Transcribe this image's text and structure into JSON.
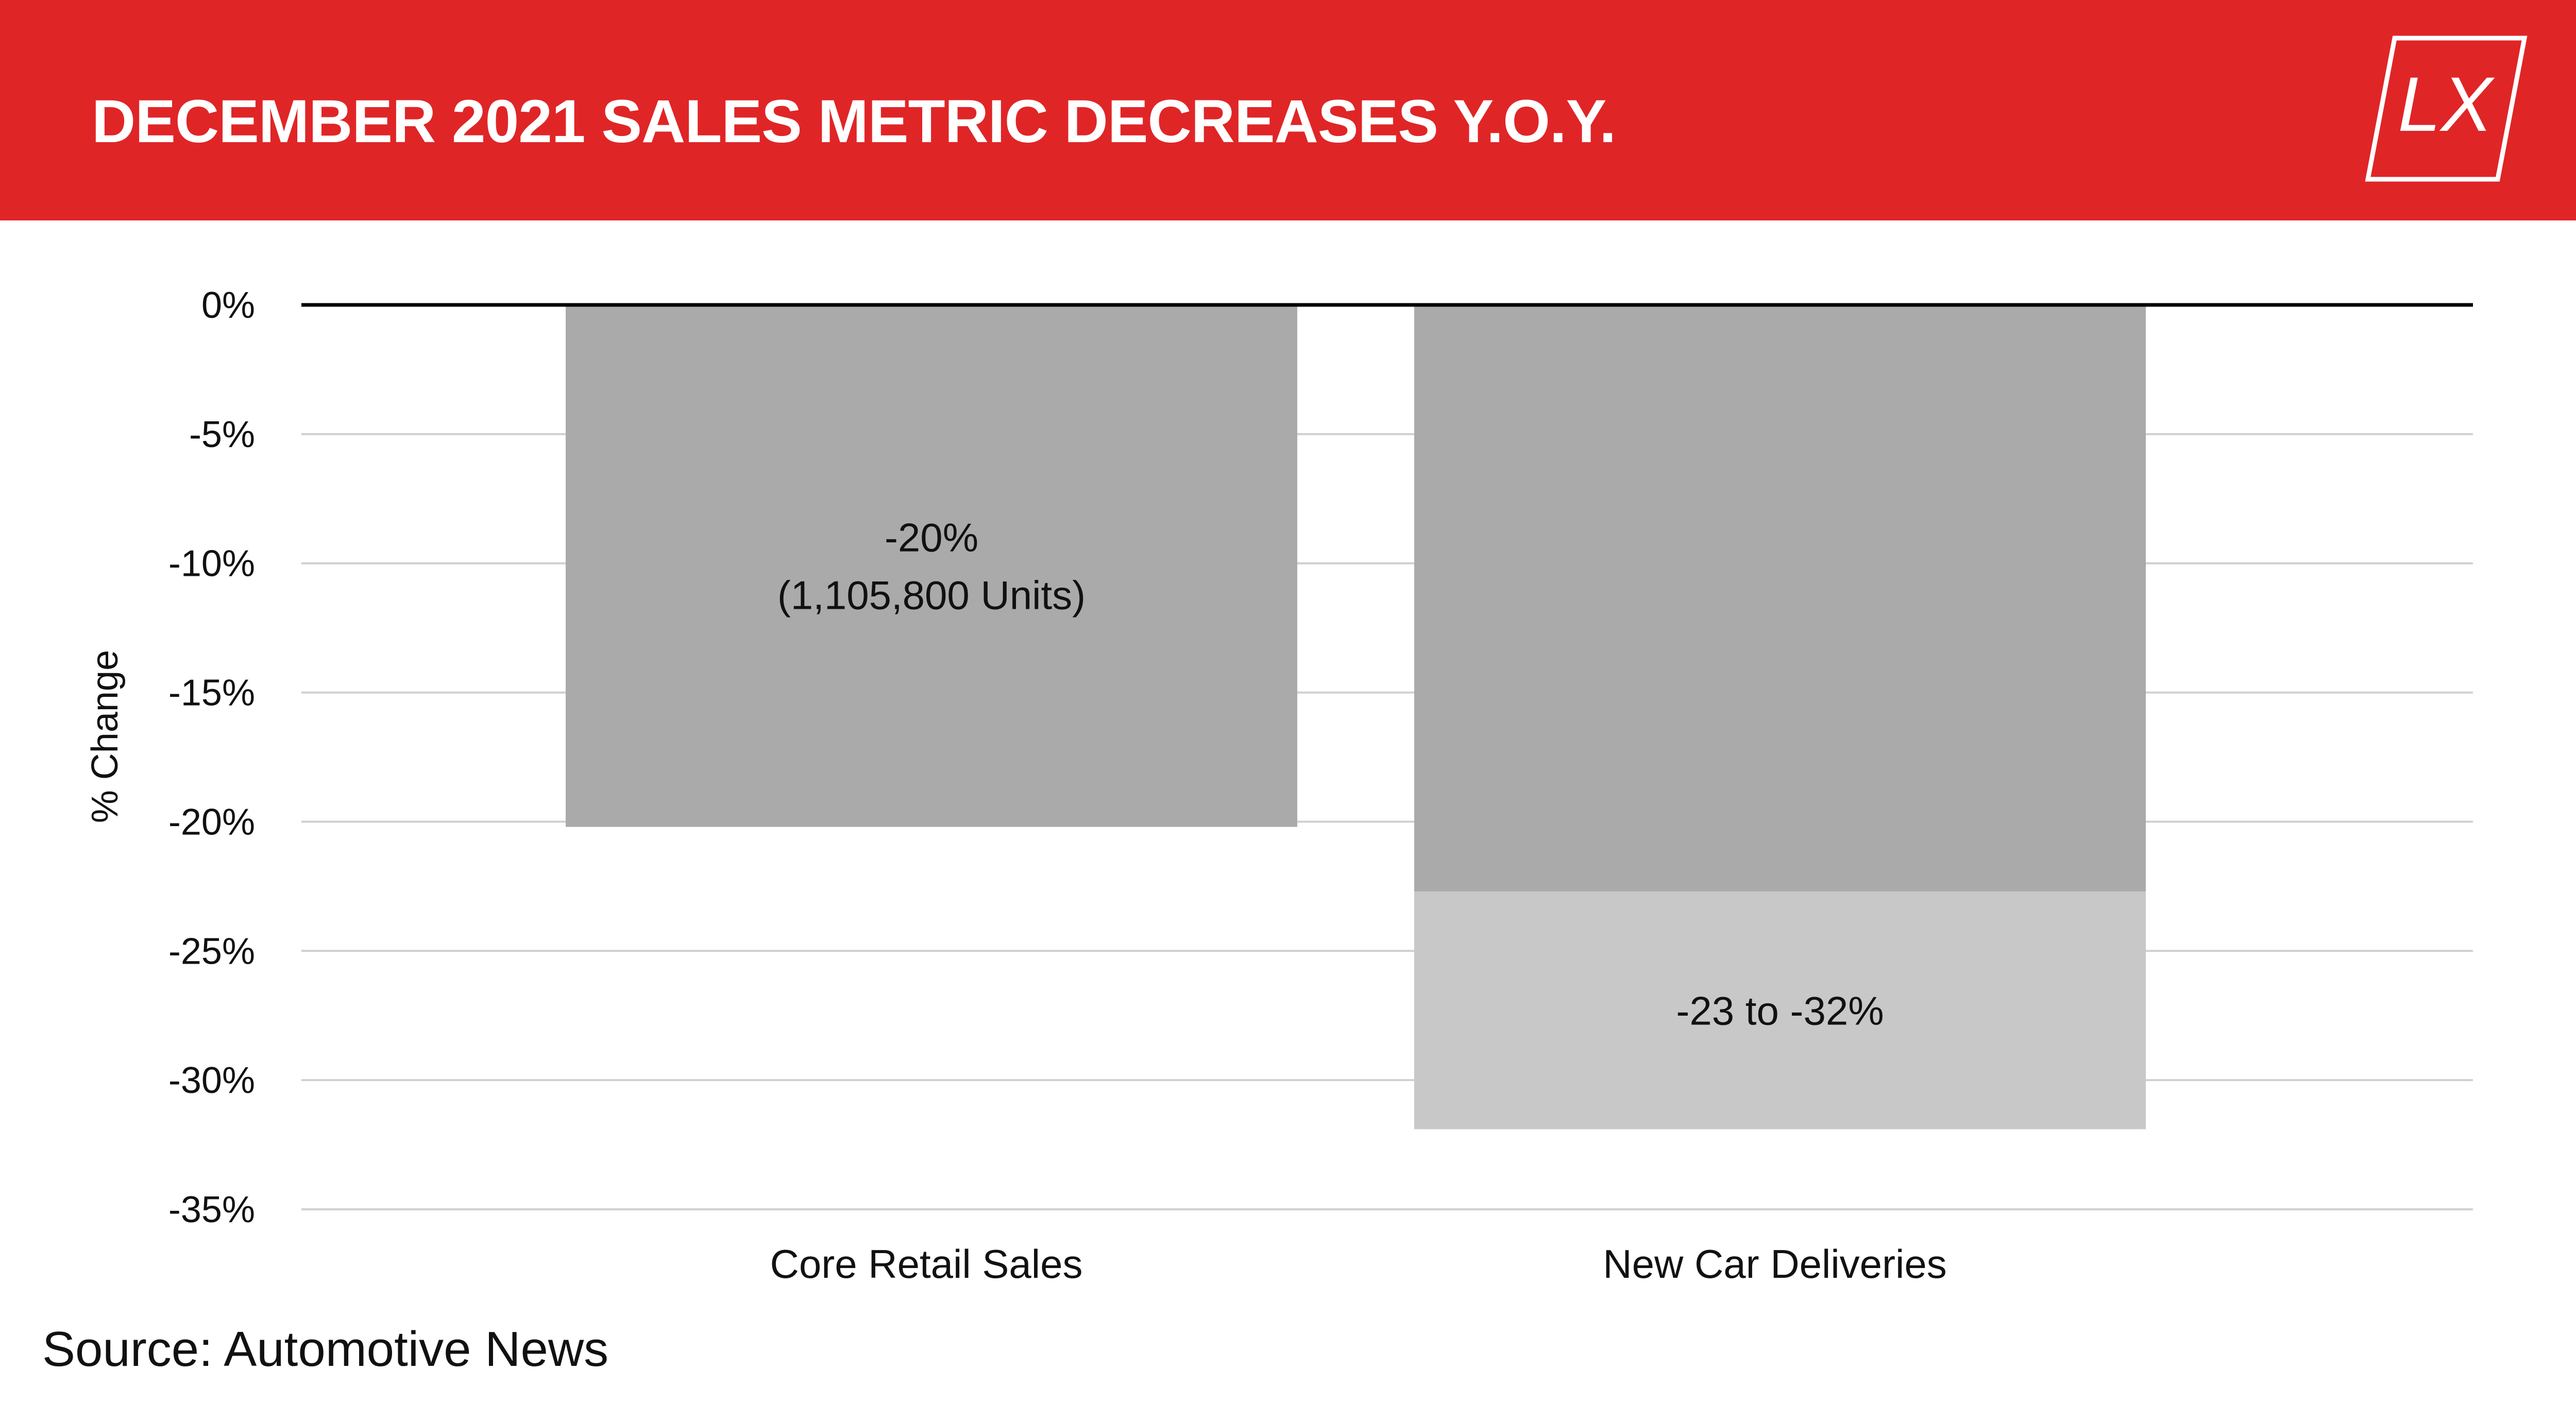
{
  "header": {
    "title": "DECEMBER 2021 SALES METRIC DECREASES Y.O.Y.",
    "logo_text": "LX",
    "background_color": "#e02527"
  },
  "chart_data": {
    "type": "bar",
    "title": "DECEMBER 2021 SALES METRIC DECREASES Y.O.Y.",
    "ylabel": "% Change",
    "xlabel": "",
    "ylim": [
      -35,
      0
    ],
    "yticks": [
      0,
      -5,
      -10,
      -15,
      -20,
      -25,
      -30,
      -35
    ],
    "ytick_labels": [
      "0%",
      "-5%",
      "-10%",
      "-15%",
      "-20%",
      "-25%",
      "-30%",
      "-35%"
    ],
    "grid": true,
    "legend": "none",
    "categories": [
      "Core Retail Sales",
      "New Car Deliveries"
    ],
    "bars": [
      {
        "category": "Core Retail Sales",
        "value": -20.2,
        "color": "#aaaaaa",
        "label_lines": [
          "-20%",
          "(1,105,800 Units)"
        ]
      },
      {
        "category": "New Car Deliveries",
        "range": [
          -22.7,
          -31.9
        ],
        "segments": [
          {
            "from": 0,
            "to": -22.7,
            "color": "#aaaaaa"
          },
          {
            "from": -22.7,
            "to": -31.9,
            "color": "#c8c8c8"
          }
        ],
        "label_lines": [
          "-23 to -32%"
        ]
      }
    ]
  },
  "footer": {
    "source": "Source: Automotive News"
  }
}
